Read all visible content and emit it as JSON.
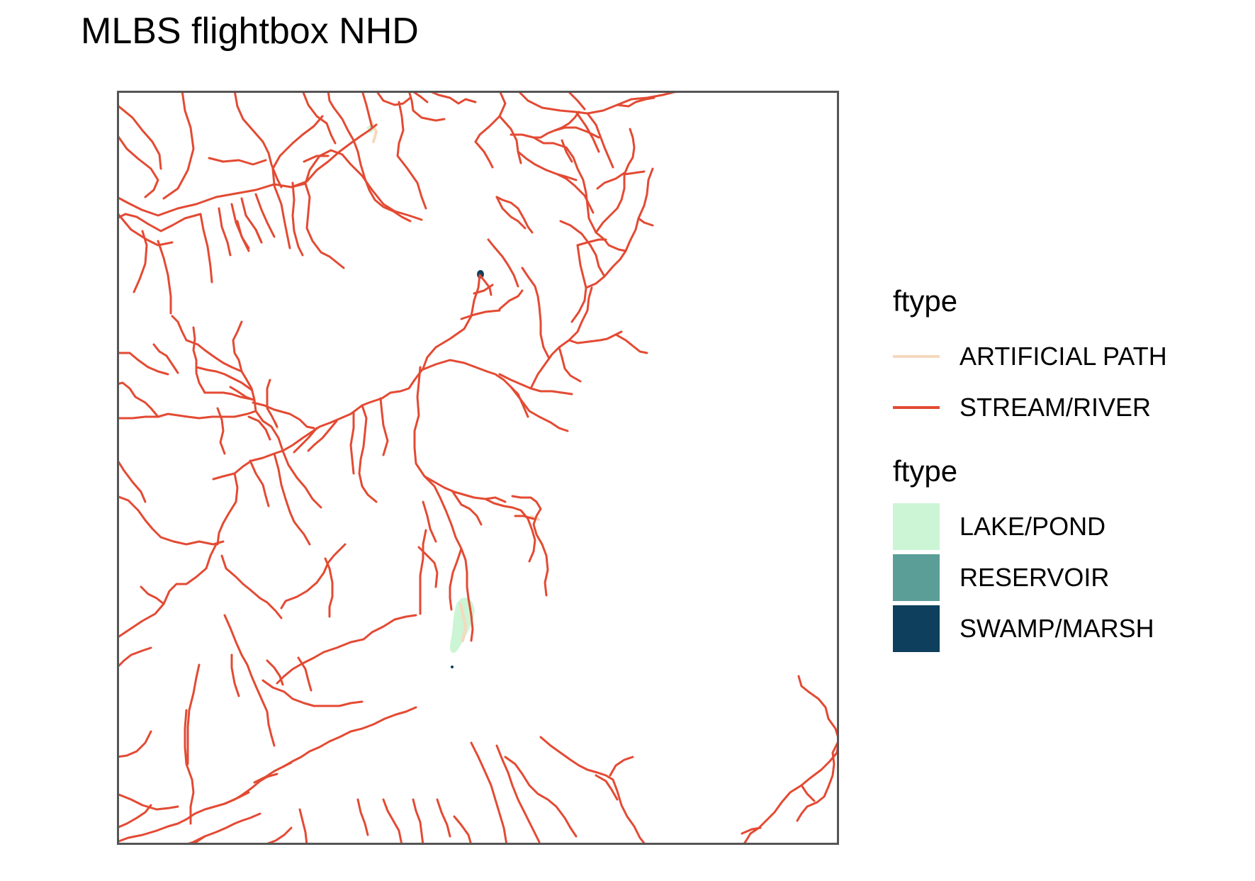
{
  "title": "MLBS flightbox NHD",
  "legend": {
    "line_group": {
      "title": "ftype",
      "items": [
        {
          "label": "ARTIFICIAL PATH",
          "color": "#F5D9BD"
        },
        {
          "label": "STREAM/RIVER",
          "color": "#E34A33"
        }
      ]
    },
    "fill_group": {
      "title": "ftype",
      "items": [
        {
          "label": "LAKE/POND",
          "color": "#CCF5D5"
        },
        {
          "label": "RESERVOIR",
          "color": "#5A9E97"
        },
        {
          "label": "SWAMP/MARSH",
          "color": "#0E3F5C"
        }
      ]
    }
  },
  "colors": {
    "stream": "#E34A33",
    "artificial_path": "#F5D9BD",
    "lake_pond": "#CCF5D5",
    "reservoir": "#5A9E97",
    "swamp_marsh": "#0E3F5C",
    "panel_border": "#555555"
  }
}
